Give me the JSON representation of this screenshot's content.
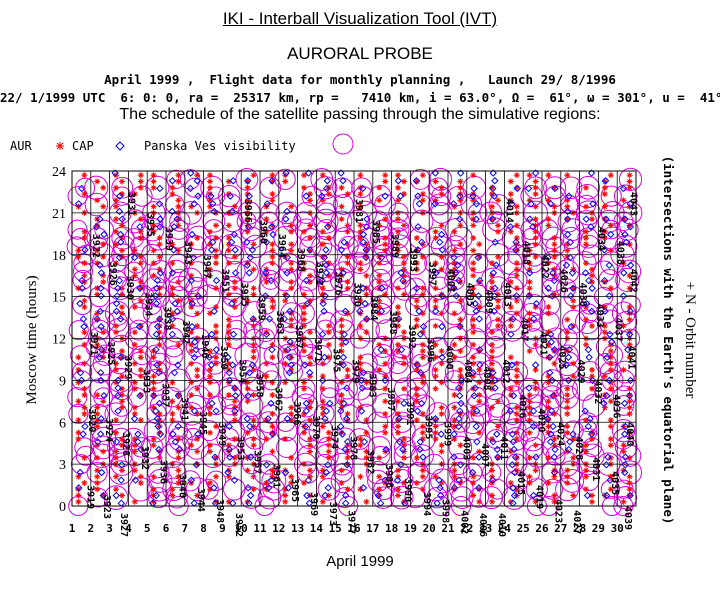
{
  "header": {
    "title": "IKI - Interball Visualization Tool (IVT)",
    "subtitle": "AURORAL PROBE",
    "line1": "April 1999 ,  Flight data for monthly planning ,   Launch 29/ 8/1996",
    "line2": "22/ 1/1999 UTC  6: 0: 0, ra =  25317 km, rp =   7410 km, i = 63.0°, Ω =  61°, ω = 301°, u =  41°",
    "caption": "The schedule of the satellite passing through the simulative regions:"
  },
  "legend": {
    "items": [
      {
        "label": "AUR",
        "symbol": "none",
        "color": "#000000"
      },
      {
        "label": "CAP",
        "symbol": "asterisk",
        "color": "#ff0000"
      },
      {
        "label": "Panska Ves visibility",
        "symbol": "diamond",
        "color": "#0000ff"
      },
      {
        "label": "",
        "symbol": "circle",
        "color": "#dd00dd"
      }
    ]
  },
  "colors": {
    "cap": "#ff0000",
    "visibility": "#0000ff",
    "aur": "#dd00dd",
    "grid": "#000000"
  },
  "chart_data": {
    "type": "scatter",
    "title": "",
    "xlabel": "April 1999",
    "ylabel": "Moscow time (hours)",
    "y2label": "+ N - Orbit number",
    "y2sublabel": "(intersections with the Earth's equatorial plane)",
    "xlim": [
      1,
      30
    ],
    "ylim": [
      0,
      24
    ],
    "grid": true,
    "xticks": [
      "1",
      "2",
      "3",
      "4",
      "5",
      "6",
      "7",
      "8",
      "9",
      "10",
      "11",
      "12",
      "13",
      "14",
      "15",
      "16",
      "17",
      "18",
      "19",
      "20",
      "21",
      "22",
      "23",
      "24",
      "25",
      "26",
      "27",
      "28",
      "29",
      "30"
    ],
    "yticks": [
      "0",
      "3",
      "6",
      "9",
      "12",
      "15",
      "18",
      "21",
      "24"
    ],
    "orbit_labels": [
      {
        "n": "3919",
        "x": 1.1,
        "y": 1.5
      },
      {
        "n": "3920",
        "x": 1.2,
        "y": 7.0
      },
      {
        "n": "3921",
        "x": 1.3,
        "y": 12.5
      },
      {
        "n": "3922",
        "x": 1.4,
        "y": 19.5
      },
      {
        "n": "3923",
        "x": 2.0,
        "y": 0.8
      },
      {
        "n": "3924",
        "x": 2.1,
        "y": 6.3
      },
      {
        "n": "3925",
        "x": 2.2,
        "y": 11.8
      },
      {
        "n": "3926",
        "x": 2.3,
        "y": 17.5
      },
      {
        "n": "3927",
        "x": 2.9,
        "y": -0.5
      },
      {
        "n": "3928",
        "x": 3.0,
        "y": 5.3
      },
      {
        "n": "3929",
        "x": 3.1,
        "y": 10.8
      },
      {
        "n": "3930",
        "x": 3.2,
        "y": 16.5
      },
      {
        "n": "3931",
        "x": 3.3,
        "y": 22.5
      },
      {
        "n": "3932",
        "x": 4.0,
        "y": 4.3
      },
      {
        "n": "3933",
        "x": 4.1,
        "y": 9.8
      },
      {
        "n": "3934",
        "x": 4.2,
        "y": 15.3
      },
      {
        "n": "3935",
        "x": 4.3,
        "y": 21.0
      },
      {
        "n": "3936",
        "x": 5.0,
        "y": 3.3
      },
      {
        "n": "3937",
        "x": 5.1,
        "y": 8.8
      },
      {
        "n": "3938",
        "x": 5.2,
        "y": 14.3
      },
      {
        "n": "3939",
        "x": 5.3,
        "y": 20.0
      },
      {
        "n": "3940",
        "x": 6.0,
        "y": 2.3
      },
      {
        "n": "3941",
        "x": 6.1,
        "y": 7.8
      },
      {
        "n": "3942",
        "x": 6.2,
        "y": 13.3
      },
      {
        "n": "3943",
        "x": 6.3,
        "y": 19.0
      },
      {
        "n": "3944",
        "x": 7.0,
        "y": 1.3
      },
      {
        "n": "3945",
        "x": 7.1,
        "y": 6.8
      },
      {
        "n": "3946",
        "x": 7.2,
        "y": 12.3
      },
      {
        "n": "3947",
        "x": 7.3,
        "y": 18.0
      },
      {
        "n": "3948",
        "x": 8.0,
        "y": 0.5
      },
      {
        "n": "3949",
        "x": 8.1,
        "y": 6.0
      },
      {
        "n": "3950",
        "x": 8.2,
        "y": 11.5
      },
      {
        "n": "3951",
        "x": 8.3,
        "y": 17.0
      },
      {
        "n": "3952",
        "x": 9.0,
        "y": -0.5
      },
      {
        "n": "3953",
        "x": 9.1,
        "y": 5.0
      },
      {
        "n": "3954",
        "x": 9.2,
        "y": 10.5
      },
      {
        "n": "3955",
        "x": 9.3,
        "y": 16.0
      },
      {
        "n": "3956",
        "x": 9.5,
        "y": 22.0
      },
      {
        "n": "3957",
        "x": 10.0,
        "y": 4.0
      },
      {
        "n": "3958",
        "x": 10.1,
        "y": 9.5
      },
      {
        "n": "3959",
        "x": 10.2,
        "y": 15.0
      },
      {
        "n": "3960",
        "x": 10.3,
        "y": 20.5
      },
      {
        "n": "3961",
        "x": 11.0,
        "y": 3.0
      },
      {
        "n": "3962",
        "x": 11.1,
        "y": 8.5
      },
      {
        "n": "3963",
        "x": 11.2,
        "y": 14.0
      },
      {
        "n": "3964",
        "x": 11.3,
        "y": 19.5
      },
      {
        "n": "3965",
        "x": 12.0,
        "y": 2.0
      },
      {
        "n": "3966",
        "x": 12.1,
        "y": 7.5
      },
      {
        "n": "3967",
        "x": 12.2,
        "y": 13.0
      },
      {
        "n": "3968",
        "x": 12.3,
        "y": 18.5
      },
      {
        "n": "3969",
        "x": 13.0,
        "y": 1.0
      },
      {
        "n": "3970",
        "x": 13.1,
        "y": 6.5
      },
      {
        "n": "3971",
        "x": 13.2,
        "y": 12.0
      },
      {
        "n": "3972",
        "x": 13.3,
        "y": 17.5
      },
      {
        "n": "3973",
        "x": 14.0,
        "y": 0.3
      },
      {
        "n": "3974",
        "x": 14.1,
        "y": 5.8
      },
      {
        "n": "3975",
        "x": 14.2,
        "y": 11.3
      },
      {
        "n": "3976",
        "x": 14.3,
        "y": 16.8
      },
      {
        "n": "3977",
        "x": 15.0,
        "y": -0.3
      },
      {
        "n": "3978",
        "x": 15.1,
        "y": 5.0
      },
      {
        "n": "3979",
        "x": 15.2,
        "y": 10.5
      },
      {
        "n": "3980",
        "x": 15.3,
        "y": 16.0
      },
      {
        "n": "3981",
        "x": 15.4,
        "y": 22.0
      },
      {
        "n": "3982",
        "x": 16.0,
        "y": 4.0
      },
      {
        "n": "3983",
        "x": 16.1,
        "y": 9.5
      },
      {
        "n": "3984",
        "x": 16.2,
        "y": 15.0
      },
      {
        "n": "3985",
        "x": 16.3,
        "y": 20.5
      },
      {
        "n": "3986",
        "x": 17.0,
        "y": 3.0
      },
      {
        "n": "3987",
        "x": 17.1,
        "y": 8.5
      },
      {
        "n": "3988",
        "x": 17.2,
        "y": 14.0
      },
      {
        "n": "3989",
        "x": 17.3,
        "y": 19.5
      },
      {
        "n": "3990",
        "x": 18.0,
        "y": 2.0
      },
      {
        "n": "3991",
        "x": 18.1,
        "y": 7.5
      },
      {
        "n": "3992",
        "x": 18.2,
        "y": 13.0
      },
      {
        "n": "3993",
        "x": 18.3,
        "y": 18.5
      },
      {
        "n": "3994",
        "x": 19.0,
        "y": 1.0
      },
      {
        "n": "3995",
        "x": 19.1,
        "y": 6.5
      },
      {
        "n": "3996",
        "x": 19.2,
        "y": 12.0
      },
      {
        "n": "3997",
        "x": 19.3,
        "y": 17.5
      },
      {
        "n": "3998",
        "x": 20.0,
        "y": 0.5
      },
      {
        "n": "3999",
        "x": 20.1,
        "y": 6.0
      },
      {
        "n": "4000",
        "x": 20.2,
        "y": 11.5
      },
      {
        "n": "4001",
        "x": 20.3,
        "y": 17.0
      },
      {
        "n": "4002",
        "x": 21.0,
        "y": -0.3
      },
      {
        "n": "4003",
        "x": 21.1,
        "y": 5.0
      },
      {
        "n": "4004",
        "x": 21.2,
        "y": 10.5
      },
      {
        "n": "4005",
        "x": 21.3,
        "y": 16.0
      },
      {
        "n": "4006",
        "x": 22.0,
        "y": -0.5
      },
      {
        "n": "4007",
        "x": 22.1,
        "y": 4.5
      },
      {
        "n": "4008",
        "x": 22.2,
        "y": 10.0
      },
      {
        "n": "4009",
        "x": 22.3,
        "y": 15.5
      },
      {
        "n": "4010",
        "x": 23.0,
        "y": -0.5
      },
      {
        "n": "4011",
        "x": 23.1,
        "y": 5.0
      },
      {
        "n": "4012",
        "x": 23.2,
        "y": 10.5
      },
      {
        "n": "4013",
        "x": 23.3,
        "y": 16.0
      },
      {
        "n": "4014",
        "x": 23.4,
        "y": 22.0
      },
      {
        "n": "4015",
        "x": 24.0,
        "y": 2.5
      },
      {
        "n": "4016",
        "x": 24.1,
        "y": 8.0
      },
      {
        "n": "4017",
        "x": 24.2,
        "y": 13.5
      },
      {
        "n": "4018",
        "x": 24.3,
        "y": 19.0
      },
      {
        "n": "4019",
        "x": 25.0,
        "y": 1.5
      },
      {
        "n": "4020",
        "x": 25.1,
        "y": 7.0
      },
      {
        "n": "4021",
        "x": 25.2,
        "y": 12.5
      },
      {
        "n": "4022",
        "x": 25.3,
        "y": 18.0
      },
      {
        "n": "4023",
        "x": 26.0,
        "y": 0.5
      },
      {
        "n": "4024",
        "x": 26.1,
        "y": 6.0
      },
      {
        "n": "4025",
        "x": 26.2,
        "y": 11.5
      },
      {
        "n": "4026",
        "x": 26.3,
        "y": 17.0
      },
      {
        "n": "4027",
        "x": 27.0,
        "y": -0.3
      },
      {
        "n": "4028",
        "x": 27.1,
        "y": 5.0
      },
      {
        "n": "4029",
        "x": 27.2,
        "y": 10.5
      },
      {
        "n": "4030",
        "x": 27.3,
        "y": 16.0
      },
      {
        "n": "4031",
        "x": 28.0,
        "y": 3.5
      },
      {
        "n": "4032",
        "x": 28.1,
        "y": 9.0
      },
      {
        "n": "4033",
        "x": 28.2,
        "y": 14.5
      },
      {
        "n": "4034",
        "x": 28.3,
        "y": 20.0
      },
      {
        "n": "4035",
        "x": 29.0,
        "y": 2.5
      },
      {
        "n": "4036",
        "x": 29.1,
        "y": 8.0
      },
      {
        "n": "4037",
        "x": 29.2,
        "y": 13.5
      },
      {
        "n": "4038",
        "x": 29.3,
        "y": 19.0
      },
      {
        "n": "4039",
        "x": 29.7,
        "y": 0.0
      },
      {
        "n": "4040",
        "x": 29.8,
        "y": 6.0
      },
      {
        "n": "4041",
        "x": 29.9,
        "y": 11.5
      },
      {
        "n": "4042",
        "x": 30.0,
        "y": 17.0
      },
      {
        "n": "4043",
        "x": 30.0,
        "y": 22.5
      }
    ]
  }
}
